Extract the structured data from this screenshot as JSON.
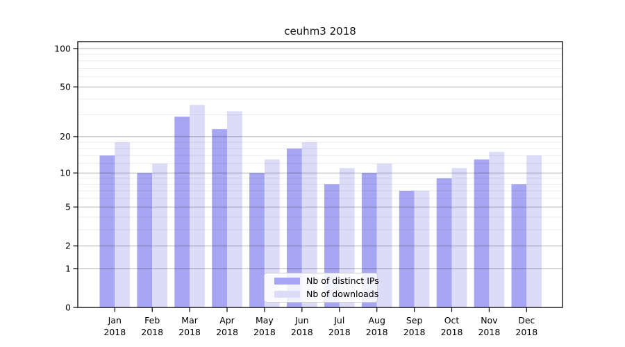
{
  "chart_data": {
    "type": "bar",
    "title": "ceuhm3 2018",
    "months": [
      "Jan",
      "Feb",
      "Mar",
      "Apr",
      "May",
      "Jun",
      "Jul",
      "Aug",
      "Sep",
      "Oct",
      "Nov",
      "Dec"
    ],
    "year": "2018",
    "series": [
      {
        "name": "Nb of distinct IPs",
        "color": "#a6a6f2",
        "values": [
          14,
          10,
          29,
          23,
          10,
          16,
          8,
          10,
          7,
          9,
          13,
          8
        ]
      },
      {
        "name": "Nb of downloads",
        "color": "#dcdcf8",
        "values": [
          18,
          12,
          36,
          32,
          13,
          18,
          11,
          12,
          7,
          11,
          15,
          14
        ]
      }
    ],
    "scale": "log1p",
    "ylim": [
      0,
      113.3
    ],
    "yticks": [
      0,
      1,
      2,
      5,
      10,
      20,
      50,
      100
    ],
    "minor_gridlines": [
      3,
      4,
      6,
      7,
      8,
      9,
      12,
      14,
      16,
      18,
      30,
      40,
      60,
      70,
      80,
      90
    ],
    "grid": true,
    "legend_position": "bottom-center",
    "colors": {
      "major_grid": "rgba(0,0,0,0.30)",
      "minor_grid": "rgba(0,0,0,0.08)",
      "axis": "#000000",
      "text": "#000000"
    }
  }
}
